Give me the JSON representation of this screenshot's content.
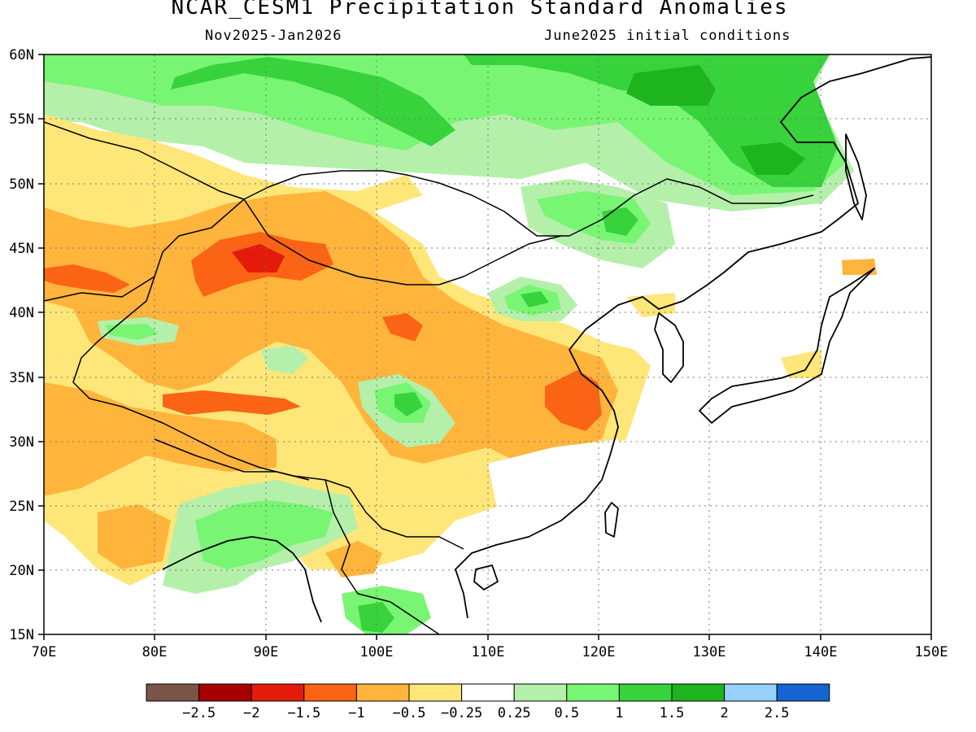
{
  "title": "NCAR_CESM1 Precipitation Standard Anomalies",
  "subtitle_left": "Nov2025-Jan2026",
  "subtitle_right": "June2025 initial conditions",
  "map": {
    "lon_range": [
      70,
      150
    ],
    "lat_range": [
      15,
      60
    ],
    "lon_ticks": [
      "70E",
      "80E",
      "90E",
      "100E",
      "110E",
      "120E",
      "130E",
      "140E",
      "150E"
    ],
    "lat_ticks": [
      "15N",
      "20N",
      "25N",
      "30N",
      "35N",
      "40N",
      "45N",
      "50N",
      "55N",
      "60N"
    ],
    "grid": "dotted"
  },
  "colorbar": {
    "colors": [
      "#7a5447",
      "#a80000",
      "#e41a0a",
      "#fa6414",
      "#ffb43c",
      "#ffe678",
      "#ffffff",
      "#b4f0aa",
      "#78f573",
      "#37d23c",
      "#1eb41e",
      "#96d2fa",
      "#1464d2"
    ],
    "labels": [
      "-2.5",
      "-2",
      "-1.5",
      "-1",
      "-0.5",
      "-0.25",
      "0.25",
      "0.5",
      "1",
      "1.5",
      "2",
      "2.5"
    ]
  },
  "anomaly_regions": [
    {
      "level": "wet-0.5",
      "color": "#b4f0aa",
      "name": "siberia-north"
    },
    {
      "level": "wet-1",
      "color": "#78f573",
      "name": "siberia-north"
    },
    {
      "level": "wet-1.5",
      "color": "#37d23c",
      "name": "siberia-north"
    },
    {
      "level": "wet-2",
      "color": "#1eb41e",
      "name": "siberia-north"
    },
    {
      "level": "dry-0.5",
      "color": "#ffe678",
      "name": "kazakhstan"
    },
    {
      "level": "dry-1",
      "color": "#ffb43c",
      "name": "central-asia-tibet"
    },
    {
      "level": "dry-1.5",
      "color": "#fa6414",
      "name": "xinjiang"
    },
    {
      "level": "dry-2",
      "color": "#e41a0a",
      "name": "xinjiang-core"
    },
    {
      "level": "wet-1",
      "color": "#78f573",
      "name": "northeast-china"
    },
    {
      "level": "wet-1",
      "color": "#78f573",
      "name": "inner-mongolia"
    },
    {
      "level": "wet-1",
      "color": "#78f573",
      "name": "sichuan-basin"
    },
    {
      "level": "wet-1",
      "color": "#78f573",
      "name": "bangladesh-myanmar"
    },
    {
      "level": "dry-1.5",
      "color": "#fa6414",
      "name": "east-china"
    },
    {
      "level": "dry-1.5",
      "color": "#fa6414",
      "name": "tibet"
    }
  ]
}
